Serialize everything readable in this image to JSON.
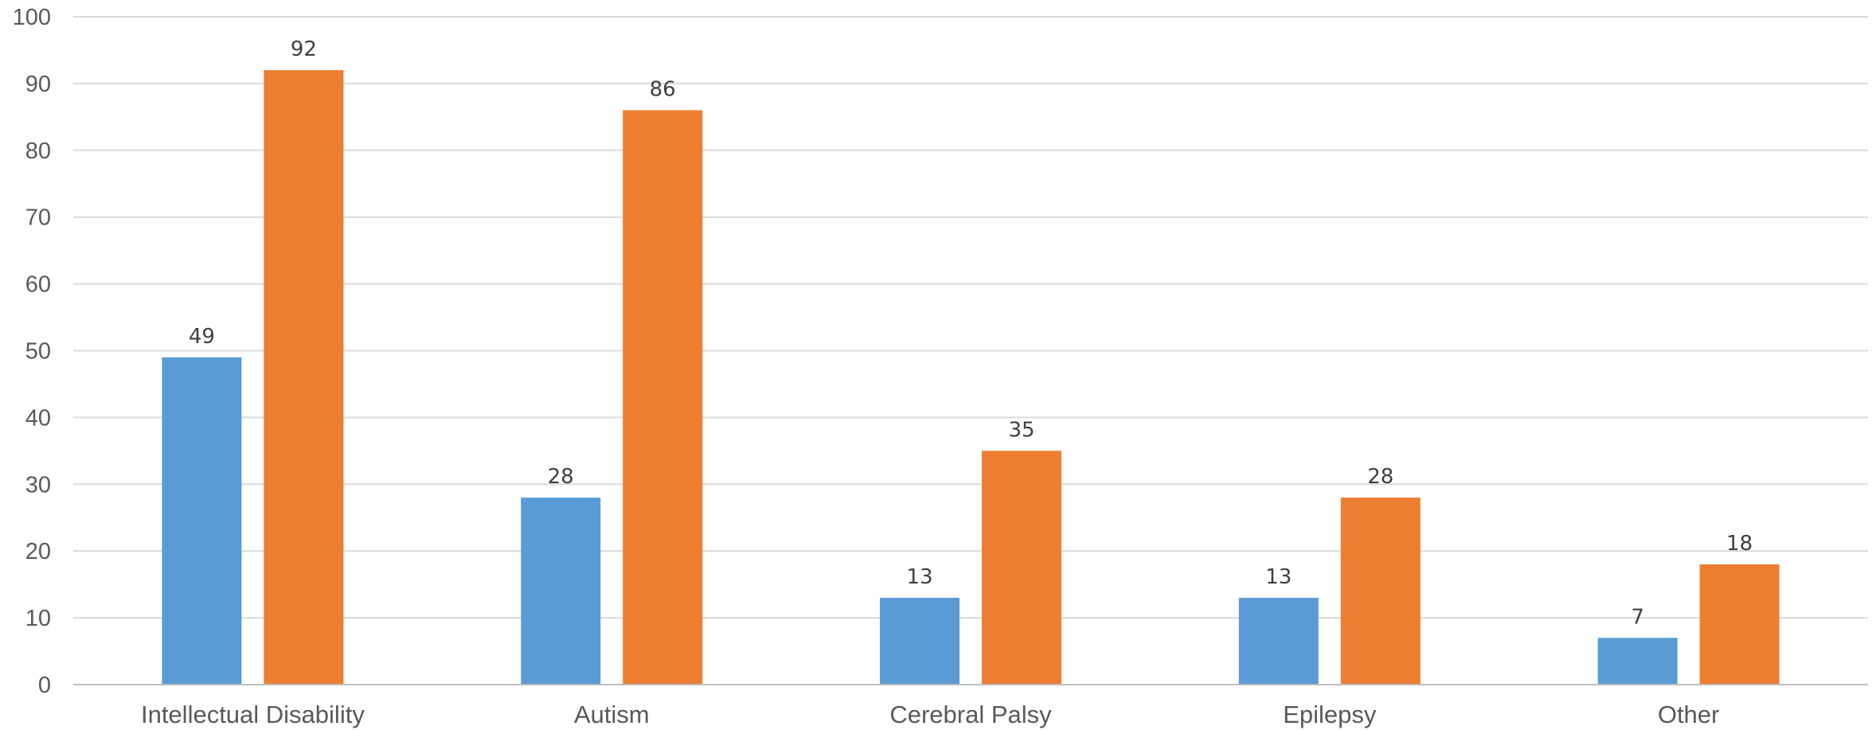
{
  "chart_data": {
    "type": "bar",
    "title": "",
    "xlabel": "",
    "ylabel": "",
    "ylim": [
      0,
      100
    ],
    "yticks": [
      0,
      10,
      20,
      30,
      40,
      50,
      60,
      70,
      80,
      90,
      100
    ],
    "grid": true,
    "legend": "none",
    "categories": [
      "Intellectual Disability",
      "Autism",
      "Cerebral Palsy",
      "Epilepsy",
      "Other"
    ],
    "series": [
      {
        "values": [
          49,
          28,
          13,
          13,
          7
        ],
        "color": "#5b9bd5"
      },
      {
        "values": [
          92,
          86,
          35,
          28,
          18
        ],
        "color": "#ed7d31"
      }
    ]
  }
}
